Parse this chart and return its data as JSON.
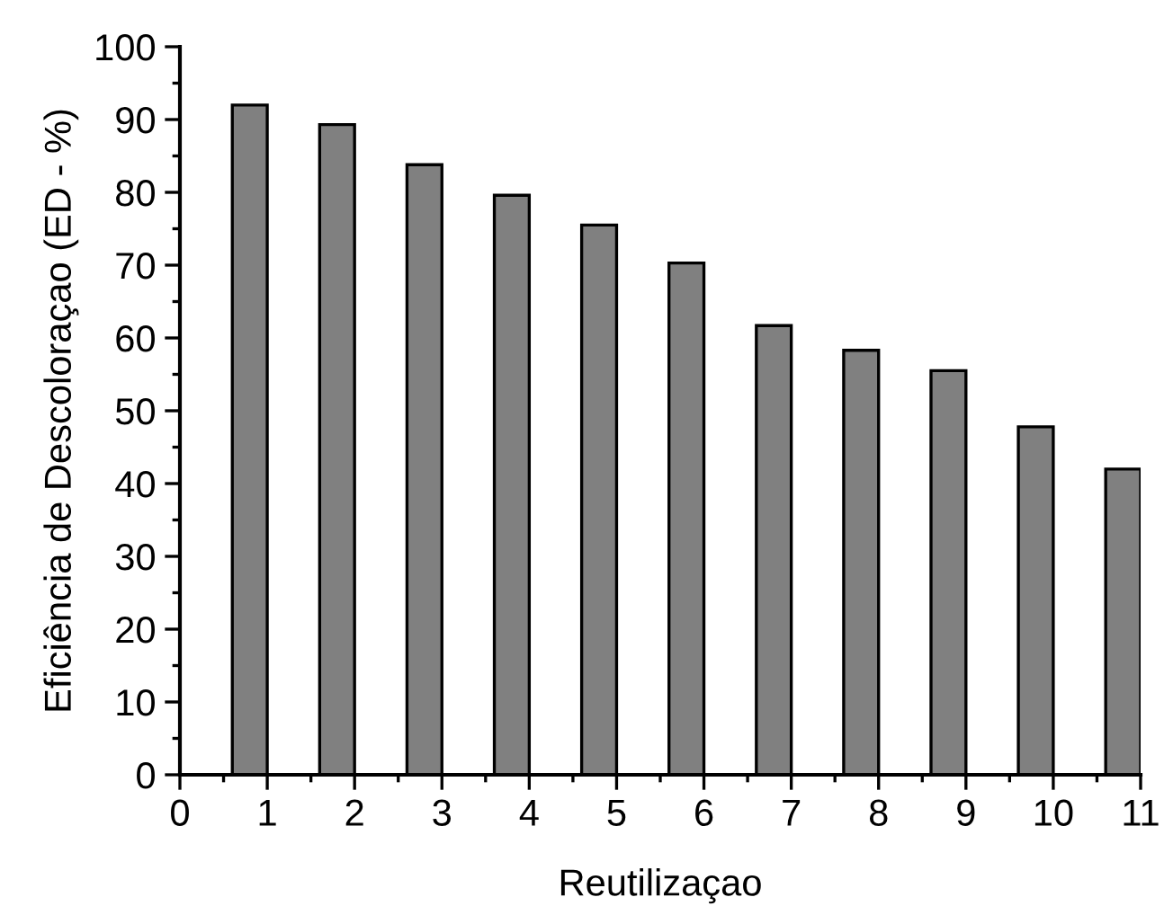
{
  "chart_data": {
    "type": "bar",
    "xlabel": "Reutilizaçao",
    "ylabel": "Eficiência de Descoloraçao (ED - %)",
    "x": [
      0.8,
      1.8,
      2.8,
      3.8,
      4.8,
      5.8,
      6.8,
      7.8,
      8.8,
      9.8,
      10.8
    ],
    "values": [
      92,
      89.3,
      83.8,
      79.6,
      75.5,
      70.3,
      61.7,
      58.3,
      55.5,
      47.8,
      42
    ],
    "color": "#808080",
    "xlim": [
      0,
      11
    ],
    "xticks": [
      0,
      1,
      2,
      3,
      4,
      5,
      6,
      7,
      8,
      9,
      10,
      11
    ],
    "ylim": [
      0,
      100
    ],
    "yticks": [
      0,
      10,
      20,
      30,
      40,
      50,
      60,
      70,
      80,
      90,
      100
    ],
    "grid": false
  }
}
